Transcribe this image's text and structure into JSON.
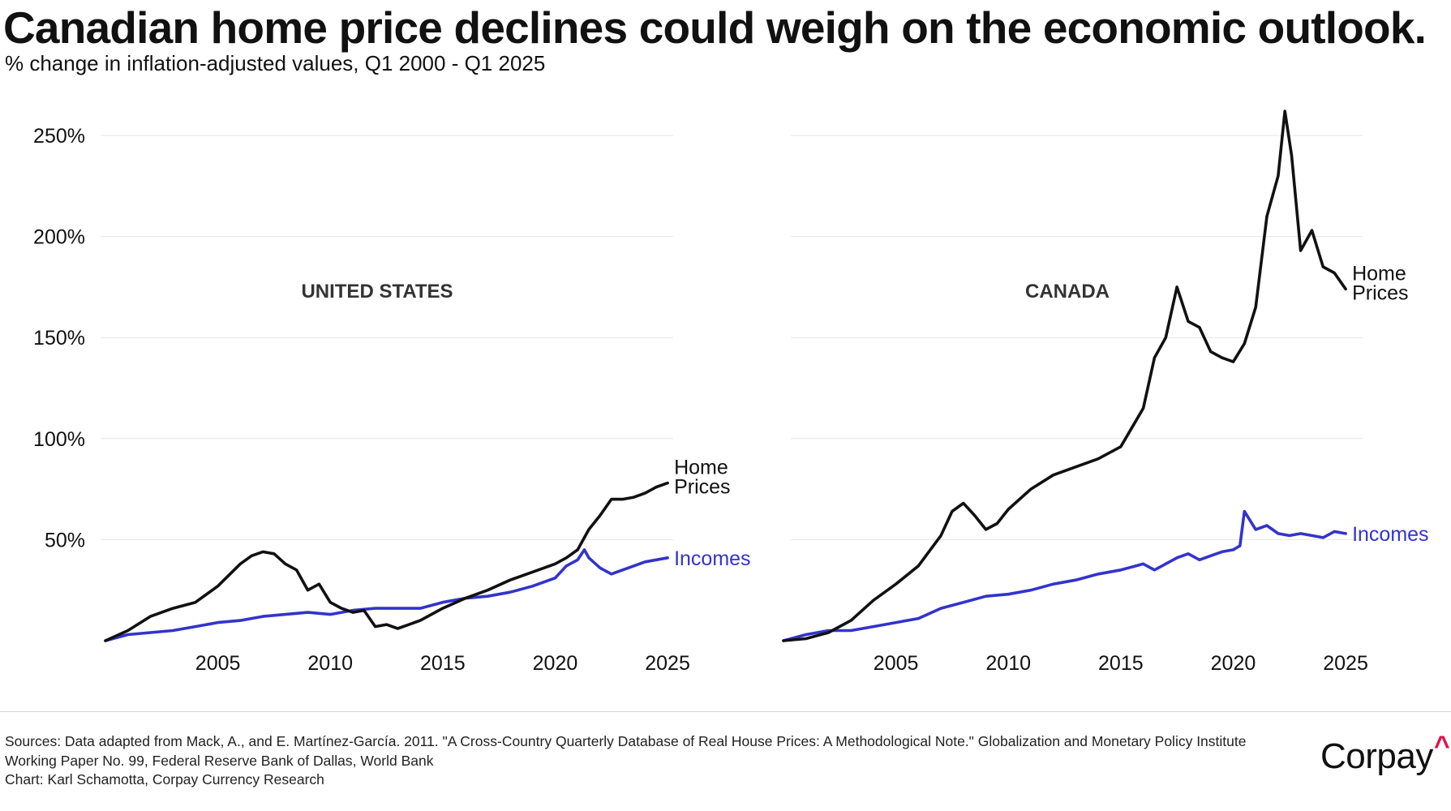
{
  "header": {
    "title": "Canadian home price declines could weigh on the economic outlook.",
    "subtitle": "% change in inflation-adjusted values, Q1 2000 - Q1 2025"
  },
  "colors": {
    "home_prices": "#111111",
    "incomes": "#3333cc",
    "grid": "#e6e6e6",
    "brand_accent": "#e0144c"
  },
  "chart_data": [
    {
      "type": "line",
      "panel_label": "UNITED STATES",
      "ylim": [
        0,
        250
      ],
      "y_ticks": [
        50,
        100,
        150,
        200,
        250
      ],
      "y_tick_labels": [
        "50%",
        "100%",
        "150%",
        "200%",
        "250%"
      ],
      "xlim": [
        2000,
        2025.25
      ],
      "x_ticks": [
        2005,
        2010,
        2015,
        2020,
        2025
      ],
      "x_tick_labels": [
        "2005",
        "2010",
        "2015",
        "2020",
        "2025"
      ],
      "grid": true,
      "series": [
        {
          "name": "Home Prices",
          "end_label_lines": [
            "Home",
            "Prices"
          ],
          "x": [
            2000,
            2001,
            2002,
            2003,
            2004,
            2005,
            2006,
            2006.5,
            2007,
            2007.5,
            2008,
            2008.5,
            2009,
            2009.5,
            2010,
            2010.5,
            2011,
            2011.5,
            2012,
            2012.5,
            2013,
            2014,
            2015,
            2016,
            2017,
            2018,
            2019,
            2020,
            2020.5,
            2021,
            2021.5,
            2022,
            2022.5,
            2023,
            2023.5,
            2024,
            2024.5,
            2025
          ],
          "y": [
            0,
            5,
            12,
            16,
            19,
            27,
            38,
            42,
            44,
            43,
            38,
            35,
            25,
            28,
            19,
            16,
            14,
            15,
            7,
            8,
            6,
            10,
            16,
            21,
            25,
            30,
            34,
            38,
            41,
            45,
            55,
            62,
            70,
            70,
            71,
            73,
            76,
            78
          ]
        },
        {
          "name": "Incomes",
          "end_label_lines": [
            "Incomes"
          ],
          "x": [
            2000,
            2001,
            2002,
            2003,
            2004,
            2005,
            2006,
            2007,
            2008,
            2009,
            2010,
            2011,
            2012,
            2013,
            2014,
            2015,
            2016,
            2017,
            2018,
            2019,
            2020,
            2020.5,
            2021,
            2021.3,
            2021.5,
            2022,
            2022.5,
            2023,
            2023.5,
            2024,
            2024.5,
            2025
          ],
          "y": [
            0,
            3,
            4,
            5,
            7,
            9,
            10,
            12,
            13,
            14,
            13,
            15,
            16,
            16,
            16,
            19,
            21,
            22,
            24,
            27,
            31,
            37,
            40,
            45,
            41,
            36,
            33,
            35,
            37,
            39,
            40,
            41
          ]
        }
      ]
    },
    {
      "type": "line",
      "panel_label": "CANADA",
      "ylim": [
        0,
        250
      ],
      "xlim": [
        2000,
        2025.25
      ],
      "x_ticks": [
        2005,
        2010,
        2015,
        2020,
        2025
      ],
      "x_tick_labels": [
        "2005",
        "2010",
        "2015",
        "2020",
        "2025"
      ],
      "grid": true,
      "series": [
        {
          "name": "Home Prices",
          "end_label_lines": [
            "Home",
            "Prices"
          ],
          "x": [
            2000,
            2001,
            2002,
            2003,
            2004,
            2005,
            2006,
            2007,
            2007.5,
            2008,
            2008.5,
            2009,
            2009.5,
            2010,
            2011,
            2012,
            2013,
            2014,
            2015,
            2016,
            2016.5,
            2017,
            2017.5,
            2018,
            2018.5,
            2019,
            2019.5,
            2020,
            2020.5,
            2021,
            2021.5,
            2022,
            2022.3,
            2022.6,
            2023,
            2023.5,
            2024,
            2024.5,
            2025
          ],
          "y": [
            0,
            1,
            4,
            10,
            20,
            28,
            37,
            52,
            64,
            68,
            62,
            55,
            58,
            65,
            75,
            82,
            86,
            90,
            96,
            115,
            140,
            150,
            175,
            158,
            155,
            143,
            140,
            138,
            147,
            165,
            210,
            230,
            262,
            240,
            193,
            203,
            185,
            182,
            174
          ]
        },
        {
          "name": "Incomes",
          "end_label_lines": [
            "Incomes"
          ],
          "x": [
            2000,
            2001,
            2002,
            2003,
            2004,
            2005,
            2006,
            2007,
            2008,
            2009,
            2010,
            2011,
            2012,
            2013,
            2014,
            2015,
            2016,
            2016.5,
            2017,
            2017.5,
            2018,
            2018.5,
            2019,
            2019.5,
            2020,
            2020.3,
            2020.5,
            2021,
            2021.5,
            2022,
            2022.5,
            2023,
            2023.5,
            2024,
            2024.5,
            2025
          ],
          "y": [
            0,
            3,
            5,
            5,
            7,
            9,
            11,
            16,
            19,
            22,
            23,
            25,
            28,
            30,
            33,
            35,
            38,
            35,
            38,
            41,
            43,
            40,
            42,
            44,
            45,
            47,
            64,
            55,
            57,
            53,
            52,
            53,
            52,
            51,
            54,
            53
          ]
        }
      ]
    }
  ],
  "footer": {
    "sources_lines": [
      "Sources: Data adapted from Mack, A., and E. Martínez-García. 2011. \"A Cross-Country Quarterly Database of Real House Prices: A Methodological Note.\" Globalization and Monetary Policy Institute",
      "Working Paper No. 99, Federal Reserve Bank of Dallas, World Bank",
      "Chart: Karl Schamotta, Corpay Currency Research"
    ],
    "brand_name": "Corpay",
    "brand_mark": "^"
  }
}
